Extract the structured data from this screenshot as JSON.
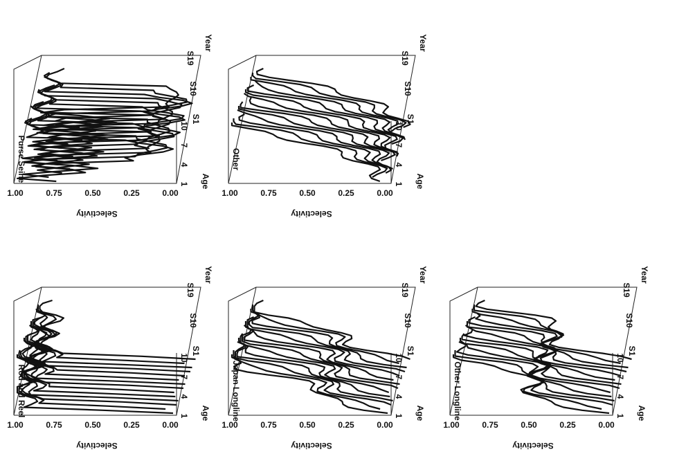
{
  "panels": [
    {
      "title": "Purse Seine",
      "y_label": "Selectivity",
      "y_ticks": [
        "1.00",
        "0.75",
        "0.50",
        "0.25",
        "0.00"
      ],
      "x_label": "Age",
      "x_ticks": [
        "1",
        "4",
        "7",
        "10"
      ],
      "z_label": "Year",
      "z_ticks": [
        "S1",
        "S10",
        "S19"
      ]
    },
    {
      "title": "Other",
      "y_label": "Selectivity",
      "y_ticks": [
        "1.00",
        "0.75",
        "0.50",
        "0.25",
        "0.00"
      ],
      "x_label": "Age",
      "x_ticks": [
        "1",
        "4",
        "7",
        "10"
      ],
      "z_label": "Year",
      "z_ticks": [
        "S1",
        "S10",
        "S19"
      ]
    },
    {
      "title": "Rod and Reel",
      "y_label": "Selectivity",
      "y_ticks": [
        "1.00",
        "0.75",
        "0.50",
        "0.25",
        "0.00"
      ],
      "x_label": "Age",
      "x_ticks": [
        "1",
        "4",
        "7",
        "10"
      ],
      "z_label": "Year",
      "z_ticks": [
        "S1",
        "S10",
        "S19"
      ]
    },
    {
      "title": "Japan Longline",
      "y_label": "Selectivity",
      "y_ticks": [
        "1.00",
        "0.75",
        "0.50",
        "0.25",
        "0.00"
      ],
      "x_label": "Age",
      "x_ticks": [
        "1",
        "4",
        "7",
        "10"
      ],
      "z_label": "Year",
      "z_ticks": [
        "S1",
        "S10",
        "S19"
      ]
    },
    {
      "title": "Other Longline",
      "y_label": "Selectivity",
      "y_ticks": [
        "1.00",
        "0.75",
        "0.50",
        "0.25",
        "0.00"
      ],
      "x_label": "Age",
      "x_ticks": [
        "1",
        "4",
        "7",
        "10"
      ],
      "z_label": "Year",
      "z_ticks": [
        "S1",
        "S10",
        "S19"
      ]
    }
  ]
}
